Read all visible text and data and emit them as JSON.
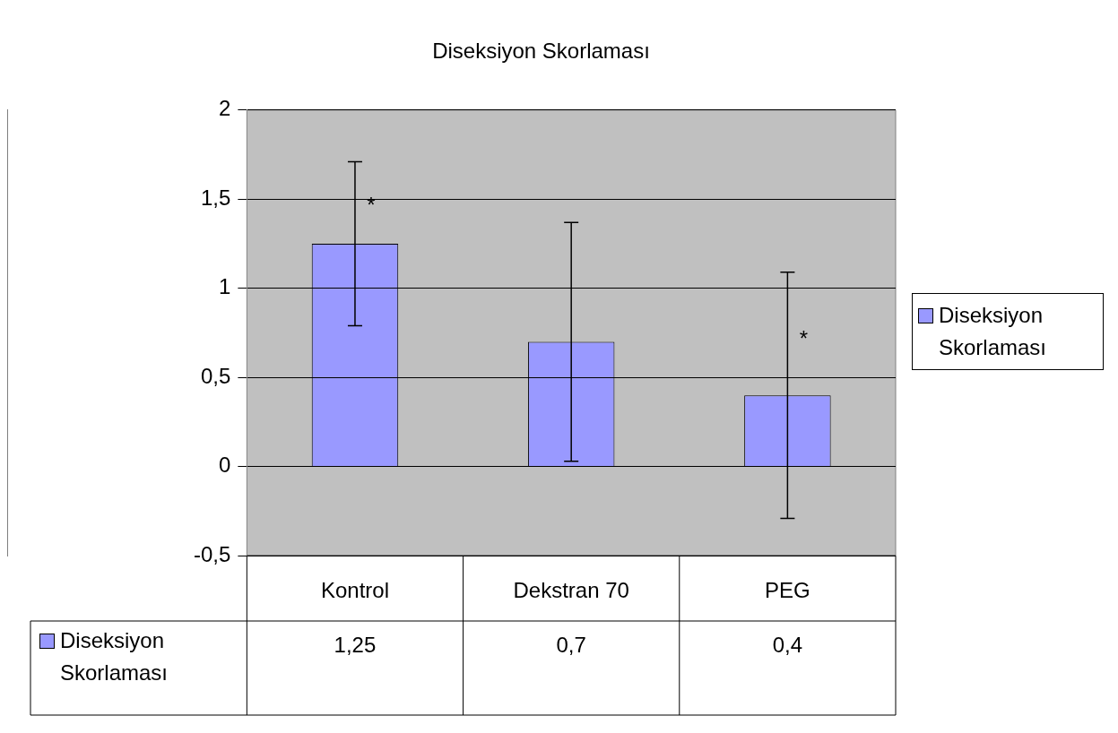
{
  "chart_data": {
    "type": "bar",
    "title": "Diseksiyon Skorlaması",
    "categories": [
      "Kontrol",
      "Dekstran 70",
      "PEG"
    ],
    "series": [
      {
        "name": "Diseksiyon Skorlaması",
        "color": "#9999ff",
        "values": [
          1.25,
          0.7,
          0.4
        ],
        "errors": [
          0.46,
          0.67,
          0.69
        ],
        "value_labels": [
          "1,25",
          "0,7",
          "0,4"
        ]
      }
    ],
    "ylim": [
      -0.5,
      2
    ],
    "yticks": [
      {
        "value": -0.5,
        "label": "-0,5"
      },
      0,
      {
        "value": 0.5,
        "label": "0,5"
      },
      1,
      {
        "value": 1.5,
        "label": "1,5"
      },
      2
    ],
    "grid": "y",
    "legend": "right",
    "annotations": [
      {
        "text": "*",
        "x": "Kontrol",
        "y": 1.46
      },
      {
        "text": "*",
        "x": "PEG",
        "y": 0.71
      }
    ]
  }
}
